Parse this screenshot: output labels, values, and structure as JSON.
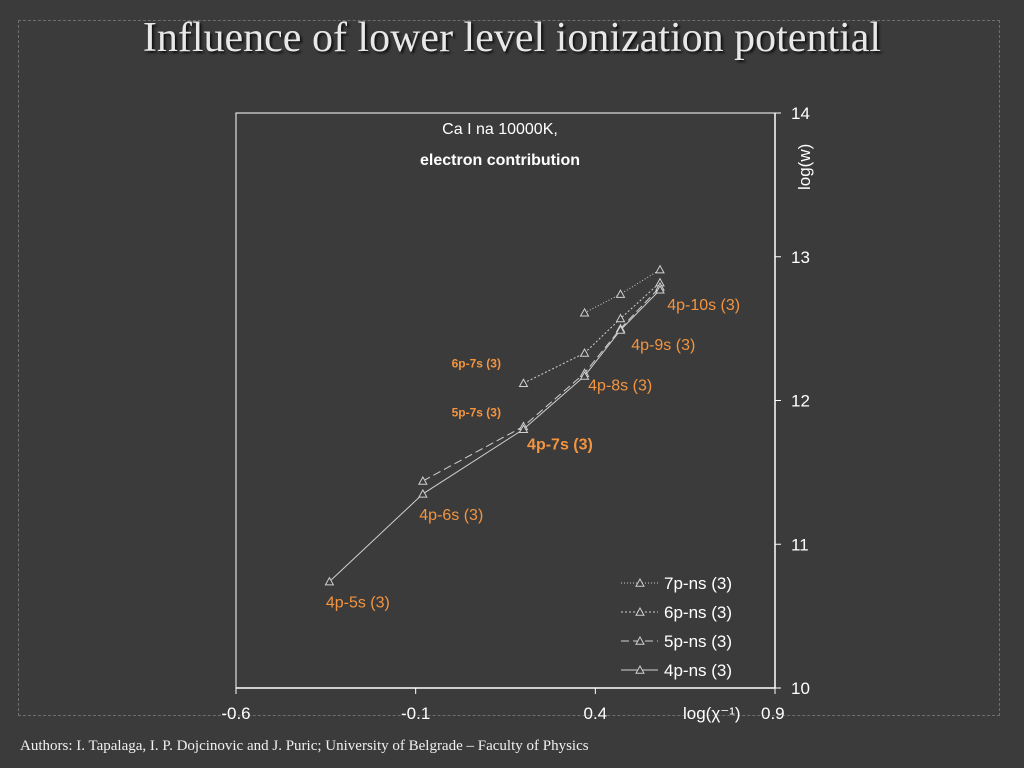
{
  "slide": {
    "title": "Influence of lower level ionization potential",
    "footer": "Authors: I. Tapalaga, I. P. Dojcinovic and J. Puric; University of Belgrade – Faculty of Physics"
  },
  "chart_data": {
    "type": "line",
    "annotation": [
      "Ca I na 10000K,",
      "electron contribution"
    ],
    "xlabel": "log(χ⁻¹)",
    "ylabel": "log(w)",
    "xlim": [
      -0.6,
      0.9
    ],
    "ylim": [
      10,
      14
    ],
    "xticks": [
      "-0.6",
      "-0.1",
      "0.4",
      "0.9"
    ],
    "yticks": [
      "10",
      "11",
      "12",
      "13",
      "14"
    ],
    "legend_position": "bottom-right",
    "series": [
      {
        "name": "7p-ns (3)",
        "dash": "1,2",
        "points": [
          [
            0.37,
            12.61
          ],
          [
            0.47,
            12.74
          ],
          [
            0.58,
            12.91
          ]
        ]
      },
      {
        "name": "6p-ns (3)",
        "dash": "2,2",
        "points": [
          [
            0.2,
            12.12
          ],
          [
            0.37,
            12.33
          ],
          [
            0.47,
            12.57
          ],
          [
            0.58,
            12.82
          ]
        ]
      },
      {
        "name": "5p-ns (3)",
        "dash": "8,4",
        "points": [
          [
            -0.08,
            11.44
          ],
          [
            0.2,
            11.82
          ],
          [
            0.37,
            12.19
          ],
          [
            0.47,
            12.5
          ],
          [
            0.58,
            12.79
          ]
        ]
      },
      {
        "name": "4p-ns (3)",
        "dash": "",
        "points": [
          [
            -0.34,
            10.74
          ],
          [
            -0.08,
            11.35
          ],
          [
            0.2,
            11.8
          ],
          [
            0.37,
            12.17
          ],
          [
            0.47,
            12.49
          ],
          [
            0.58,
            12.77
          ]
        ]
      }
    ],
    "labels": [
      {
        "text": "4p-10s (3)",
        "x": 0.6,
        "y": 12.63,
        "size": 16,
        "bold": false
      },
      {
        "text": "4p-9s (3)",
        "x": 0.5,
        "y": 12.35,
        "size": 16,
        "bold": false
      },
      {
        "text": "4p-8s (3)",
        "x": 0.38,
        "y": 12.07,
        "size": 16,
        "bold": false
      },
      {
        "text": "4p-7s (3)",
        "x": 0.21,
        "y": 11.66,
        "size": 16,
        "bold": true
      },
      {
        "text": "4p-6s (3)",
        "x": -0.09,
        "y": 11.17,
        "size": 16,
        "bold": false
      },
      {
        "text": "4p-5s (3)",
        "x": -0.35,
        "y": 10.56,
        "size": 16,
        "bold": false
      },
      {
        "text": "6p-7s (3)",
        "x": 0.0,
        "y": 12.23,
        "size": 12,
        "bold": true
      },
      {
        "text": "5p-7s (3)",
        "x": 0.0,
        "y": 11.89,
        "size": 12,
        "bold": true
      }
    ],
    "colors": {
      "background": "#3b3b3b",
      "series": "#d0d0d0",
      "label": "#f39540",
      "axis": "#ffffff"
    }
  }
}
